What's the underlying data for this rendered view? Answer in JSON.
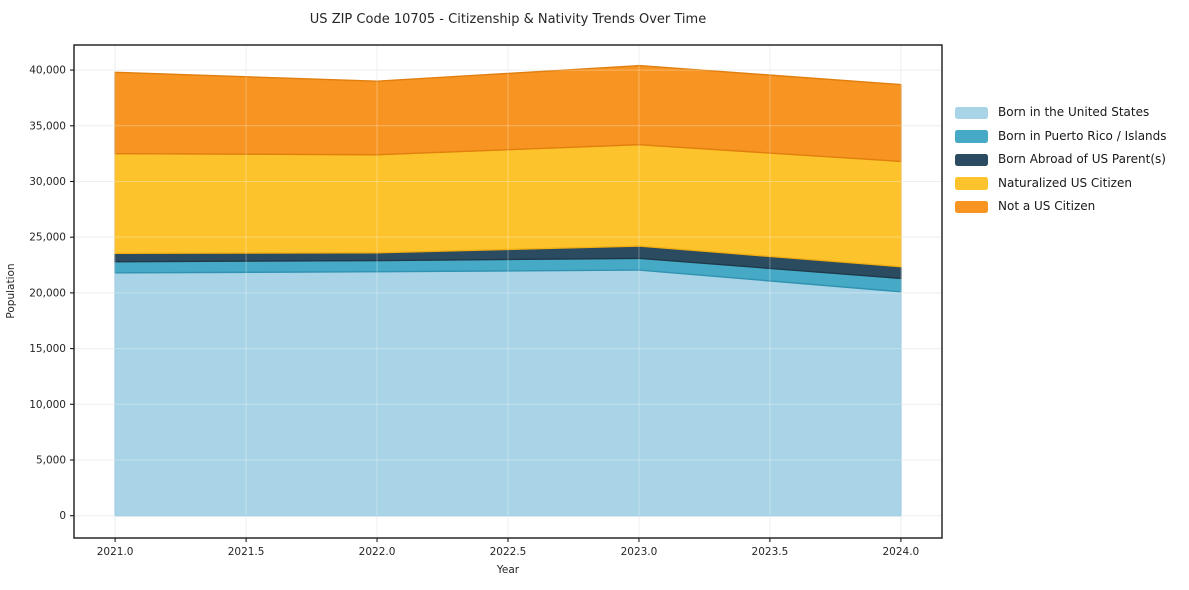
{
  "chart": {
    "title": "US ZIP Code 10705 - Citizenship & Nativity Trends Over Time",
    "xlabel": "Year",
    "ylabel": "Population"
  },
  "chart_data": {
    "type": "area",
    "stacked": true,
    "title": "US ZIP Code 10705 - Citizenship & Nativity Trends Over Time",
    "xlabel": "Year",
    "ylabel": "Population",
    "x": [
      2021,
      2022,
      2023,
      2024
    ],
    "series": [
      {
        "name": "Born in the United States",
        "color": "#a9d4e7",
        "edge": "#8fc2db",
        "values": [
          21800,
          21900,
          22050,
          20100
        ]
      },
      {
        "name": "Born in Puerto Rico / Islands",
        "color": "#46aac6",
        "edge": "#3093b2",
        "values": [
          1000,
          1000,
          1050,
          1200
        ]
      },
      {
        "name": "Born Abroad of US Parent(s)",
        "color": "#2b4b60",
        "edge": "#20394a",
        "values": [
          750,
          700,
          1100,
          1050
        ]
      },
      {
        "name": "Naturalized US Citizen",
        "color": "#fdc32d",
        "edge": "#f0ae12",
        "values": [
          8950,
          8800,
          9100,
          9450
        ]
      },
      {
        "name": "Not a US Citizen",
        "color": "#f79422",
        "edge": "#e07f0e",
        "values": [
          7300,
          6600,
          7100,
          6900
        ]
      }
    ],
    "totals": [
      39800,
      39000,
      40400,
      38700
    ],
    "xlim": [
      2020.843,
      2024.157
    ],
    "ylim": [
      -2000,
      42250
    ],
    "x_ticks": [
      2021.0,
      2021.5,
      2022.0,
      2022.5,
      2023.0,
      2023.5,
      2024.0
    ],
    "x_tick_labels": [
      "2021.0",
      "2021.5",
      "2022.0",
      "2022.5",
      "2023.0",
      "2023.5",
      "2024.0"
    ],
    "y_ticks": [
      0,
      5000,
      10000,
      15000,
      20000,
      25000,
      30000,
      35000,
      40000
    ],
    "y_tick_labels": [
      "0",
      "5,000",
      "10,000",
      "15,000",
      "20,000",
      "25,000",
      "30,000",
      "35,000",
      "40,000"
    ],
    "grid": true,
    "legend_position": "right-outside",
    "colors": {
      "background": "#ffffff",
      "grid": "#e9e9e9",
      "spine": "#1a1a1a",
      "text": "#262626"
    }
  }
}
